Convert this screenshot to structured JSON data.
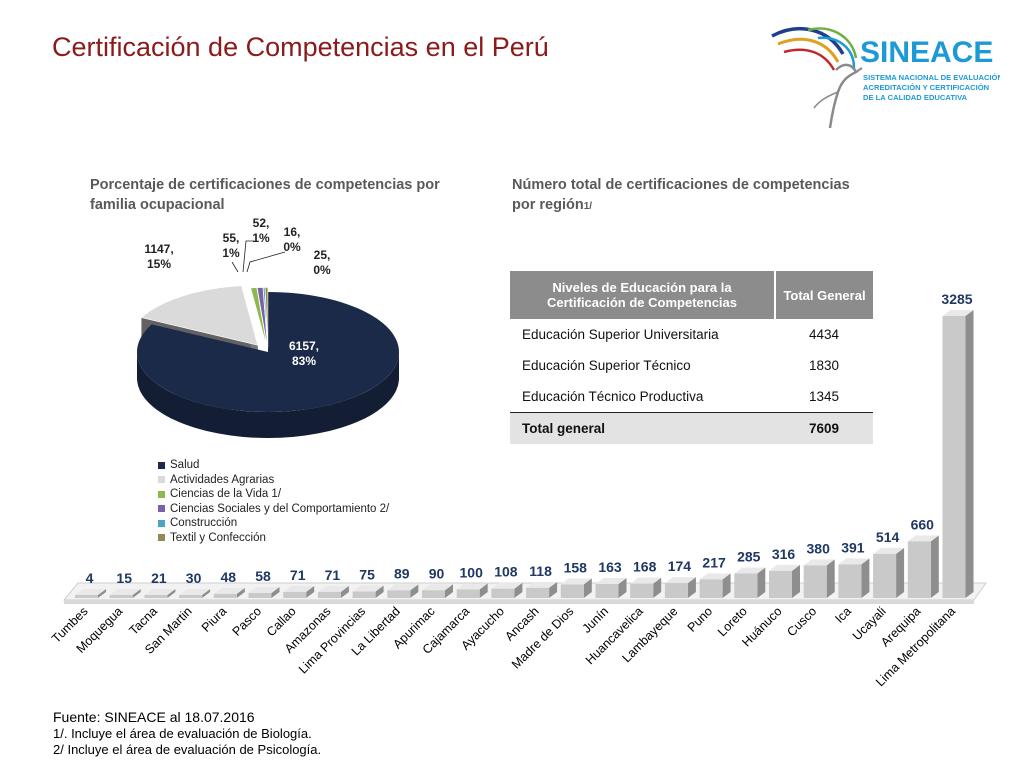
{
  "title": "Certificación de Competencias en el Perú",
  "logo": {
    "name": "SINEACE",
    "lines": [
      "SISTEMA NACIONAL DE EVALUACIÓN,",
      "ACREDITACIÓN Y CERTIFICACIÓN",
      "DE LA CALIDAD EDUCATIVA"
    ],
    "color": "#1d9ad6"
  },
  "pie_subtitle_lines": [
    "Porcentaje de certificaciones de competencias por",
    "familia ocupacional"
  ],
  "bar_subtitle_lines": [
    "Número total de certificaciones de competencias",
    "por región"
  ],
  "bar_subtitle_suffix": "1/",
  "table": {
    "headers": [
      "Niveles de Educación para la Certificación de Competencias",
      "Total General"
    ],
    "rows": [
      {
        "label": "Educación Superior Universitaria",
        "value": "4434"
      },
      {
        "label": "Educación Superior Técnico",
        "value": "1830"
      },
      {
        "label": "Educación Técnico Productiva",
        "value": "1345"
      }
    ],
    "total": {
      "label": "Total general",
      "value": "7609"
    }
  },
  "footer": {
    "source": "Fuente: SINEACE al  18.07.2016",
    "notes": [
      "1/. Incluye  el área de evaluación de Biología.",
      "2/ Incluye  el área  de evaluación de Psicología."
    ]
  },
  "chart_data": [
    {
      "type": "pie",
      "title": "Porcentaje de certificaciones de competencias por familia ocupacional",
      "legend_position": "bottom",
      "slices": [
        {
          "name": "Salud",
          "value": 6157,
          "label": "6157,\n83%",
          "color": "#1b2a48"
        },
        {
          "name": "Actividades Agrarias",
          "value": 1147,
          "label": "1147,\n15%",
          "color": "#dadada"
        },
        {
          "name": "Ciencias de la Vida 1/",
          "value": 55,
          "label": "55,\n1%",
          "color": "#8db84f"
        },
        {
          "name": "Ciencias Sociales y del Comportamiento 2/",
          "value": 52,
          "label": "52,\n1%",
          "color": "#7a62a8"
        },
        {
          "name": "Construcción",
          "value": 16,
          "label": "16,\n0%",
          "color": "#4aa5c2"
        },
        {
          "name": "Textil y Confección",
          "value": 25,
          "label": "25,\n0%",
          "color": "#938953"
        }
      ]
    },
    {
      "type": "bar",
      "title": "Número total de certificaciones de competencias por región1/",
      "categories": [
        "Tumbes",
        "Moquegua",
        "Tacna",
        "San Martin",
        "Piura",
        "Pasco",
        "Callao",
        "Amazonas",
        "Lima Provincias",
        "La Libertad",
        "Apurimac",
        "Cajamarca",
        "Ayacucho",
        "Ancash",
        "Madre de Dios",
        "Junín",
        "Huancavelica",
        "Lambayeque",
        "Puno",
        "Loreto",
        "Huánuco",
        "Cusco",
        "Ica",
        "Ucayali",
        "Arequipa",
        "Lima Metropolitana"
      ],
      "values": [
        4,
        15,
        21,
        30,
        48,
        58,
        71,
        71,
        75,
        89,
        90,
        100,
        108,
        118,
        158,
        163,
        168,
        174,
        217,
        285,
        316,
        380,
        391,
        514,
        660,
        3285
      ],
      "label_color": "#1f3864",
      "bar_color": "#c9c9c9"
    }
  ]
}
